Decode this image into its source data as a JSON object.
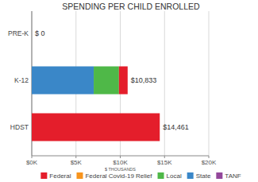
{
  "chart_data": {
    "type": "bar",
    "title": "SPENDING PER CHILD ENROLLED",
    "orientation": "horizontal",
    "stacked": true,
    "grid": true,
    "legend": "bottom",
    "categories": [
      "PRE-K",
      "K-12",
      "HDST"
    ],
    "series": [
      {
        "name": "Federal",
        "color": "#e41e2b",
        "values": [
          0,
          983,
          14461
        ]
      },
      {
        "name": "Federal Covid-19 Relief",
        "color": "#f7941d",
        "values": [
          0,
          0,
          0
        ]
      },
      {
        "name": "Local",
        "color": "#4fb848",
        "values": [
          0,
          2850,
          0
        ]
      },
      {
        "name": "State",
        "color": "#3a87c8",
        "values": [
          0,
          7000,
          0
        ]
      },
      {
        "name": "TANF",
        "color": "#93479b",
        "values": [
          0,
          0,
          0
        ]
      }
    ],
    "totals": [
      0,
      10833,
      14461
    ],
    "total_labels": [
      "$ 0",
      "$10,833",
      "$14,461"
    ],
    "xlim": [
      0,
      20000
    ],
    "xticks": [
      {
        "value": 0,
        "label": "$0K"
      },
      {
        "value": 5000,
        "label": "$5K"
      },
      {
        "value": 10000,
        "label": "$10K"
      },
      {
        "value": 15000,
        "label": "$15K"
      },
      {
        "value": 20000,
        "label": "$20K"
      }
    ],
    "xlabel": "$ THOUSANDS"
  }
}
